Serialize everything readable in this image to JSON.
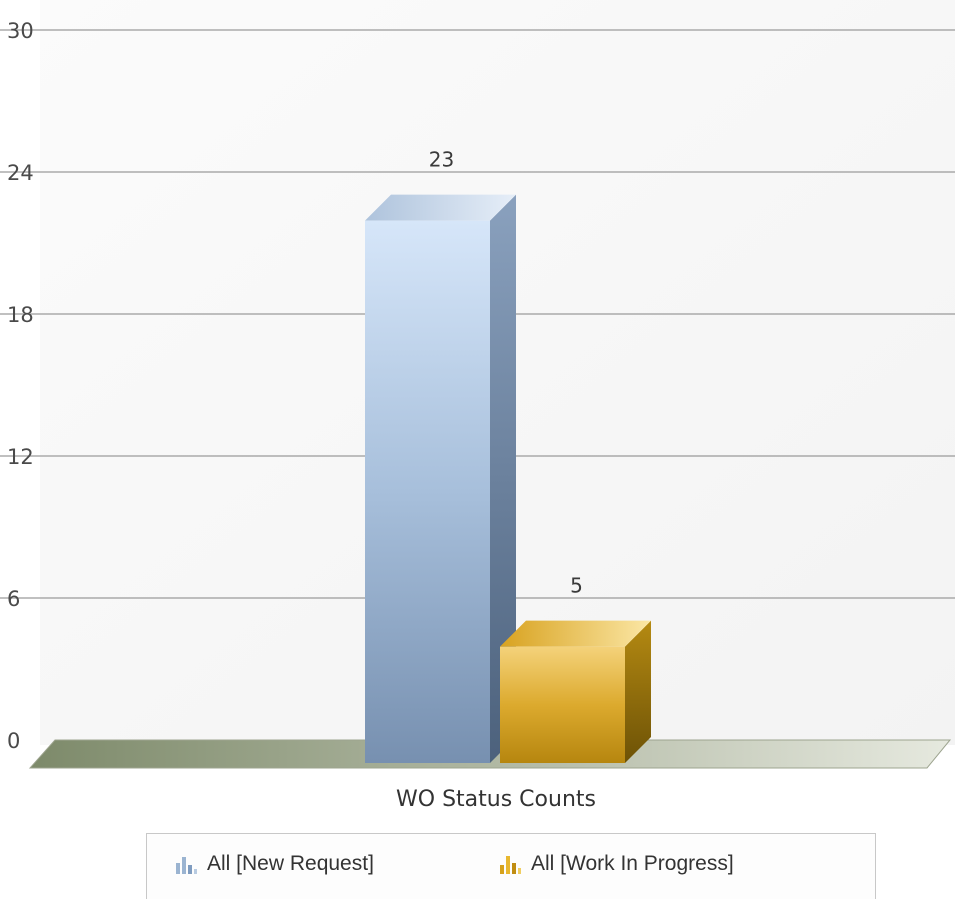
{
  "chart_data": {
    "type": "bar",
    "categories": [
      "WO Status Counts"
    ],
    "series": [
      {
        "name": "All [New Request]",
        "values": [
          23
        ],
        "color": "#9bb4d1"
      },
      {
        "name": "All [Work In Progress]",
        "values": [
          5
        ],
        "color": "#c89b1e"
      }
    ],
    "ylim": [
      0,
      30
    ],
    "yticks": [
      "0",
      "6",
      "12",
      "18",
      "24",
      "30"
    ],
    "data_labels": [
      "23",
      "5"
    ],
    "grid": true,
    "legend_position": "bottom",
    "three_d": true
  },
  "legend": {
    "new_request": "All [New Request]",
    "work_in_progress": "All [Work In Progress]"
  }
}
